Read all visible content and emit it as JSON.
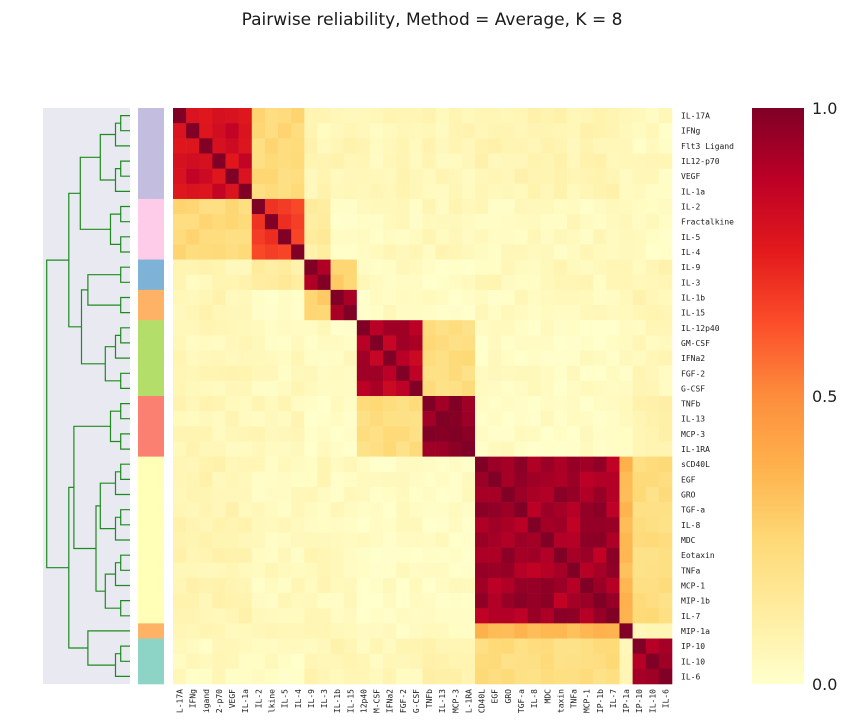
{
  "chart_data": {
    "type": "heatmap",
    "title": "Pairwise reliability, Method = Average, K = 8",
    "labels": [
      "IL-17A",
      "IFNg",
      "Flt3 Ligand",
      "IL12-p70",
      "VEGF",
      "IL-1a",
      "IL-2",
      "Fractalkine",
      "IL-5",
      "IL-4",
      "IL-9",
      "IL-3",
      "IL-1b",
      "IL-15",
      "IL-12p40",
      "GM-CSF",
      "IFNa2",
      "FGF-2",
      "G-CSF",
      "TNFb",
      "IL-13",
      "MCP-3",
      "IL-1RA",
      "sCD40L",
      "EGF",
      "GRO",
      "TGF-a",
      "IL-8",
      "MDC",
      "Eotaxin",
      "TNFa",
      "MCP-1",
      "MIP-1b",
      "IL-7",
      "MIP-1a",
      "IP-10",
      "IL-10",
      "IL-6"
    ],
    "column_labels_visible": [
      "L-17A",
      "IFNg",
      "igand",
      "2-p70",
      "VEGF",
      "IL-1a",
      "IL-2",
      "lkine",
      "IL-5",
      "IL-4",
      "IL-9",
      "IL-3",
      "IL-1b",
      "IL-15",
      "12p40",
      "M-CSF",
      "IFNa2",
      "FGF-2",
      "G-CSF",
      "TNFb",
      "IL-13",
      "MCP-3",
      "L-1RA",
      "CD40L",
      "EGF",
      "GRO",
      "TGF-a",
      "IL-8",
      "MDC",
      "taxin",
      "TNFa",
      "MCP-1",
      "IP-1b",
      "IL-7",
      "IP-1a",
      "IP-10",
      "IL-10",
      "IL-6"
    ],
    "colorbar": {
      "min": 0.0,
      "max": 1.0,
      "ticks": [
        "0.0",
        "0.5",
        "1.0"
      ],
      "colormap": "YlOrRd"
    },
    "clusters": [
      {
        "members": 6,
        "color": "#c3bddf"
      },
      {
        "members": 4,
        "color": "#fecbe8"
      },
      {
        "members": 2,
        "color": "#7eb2d6"
      },
      {
        "members": 2,
        "color": "#fdb266"
      },
      {
        "members": 5,
        "color": "#b4de6a"
      },
      {
        "members": 4,
        "color": "#fb8072"
      },
      {
        "members": 11,
        "color": "#ffffb8"
      },
      {
        "members": 1,
        "color": "#fdb266"
      },
      {
        "members": 3,
        "color": "#8dd4c7"
      }
    ],
    "block_values": [
      [
        0.82,
        0.24,
        0.06,
        0.06,
        0.05,
        0.06,
        0.07,
        0.05,
        0.04
      ],
      [
        0.24,
        0.66,
        0.12,
        0.03,
        0.04,
        0.05,
        0.04,
        0.03,
        0.02
      ],
      [
        0.06,
        0.12,
        0.9,
        0.28,
        0.03,
        0.02,
        0.05,
        0.06,
        0.06
      ],
      [
        0.06,
        0.03,
        0.28,
        0.95,
        0.03,
        0.02,
        0.03,
        0.07,
        0.07
      ],
      [
        0.05,
        0.04,
        0.03,
        0.03,
        0.88,
        0.22,
        0.02,
        0.03,
        0.05
      ],
      [
        0.06,
        0.05,
        0.02,
        0.02,
        0.22,
        0.97,
        0.02,
        0.02,
        0.08
      ],
      [
        0.07,
        0.04,
        0.05,
        0.03,
        0.02,
        0.02,
        0.92,
        0.35,
        0.22
      ],
      [
        0.06,
        0.04,
        0.06,
        0.07,
        0.03,
        0.02,
        0.35,
        0.8,
        0.07
      ],
      [
        0.04,
        0.02,
        0.06,
        0.07,
        0.05,
        0.08,
        0.22,
        0.07,
        0.92
      ]
    ],
    "colorbar_label_positions": "right",
    "grid": false
  },
  "colors": {
    "dendrogram_line": "#1f8a1f",
    "dendrogram_bg": "#e8e9f1"
  }
}
